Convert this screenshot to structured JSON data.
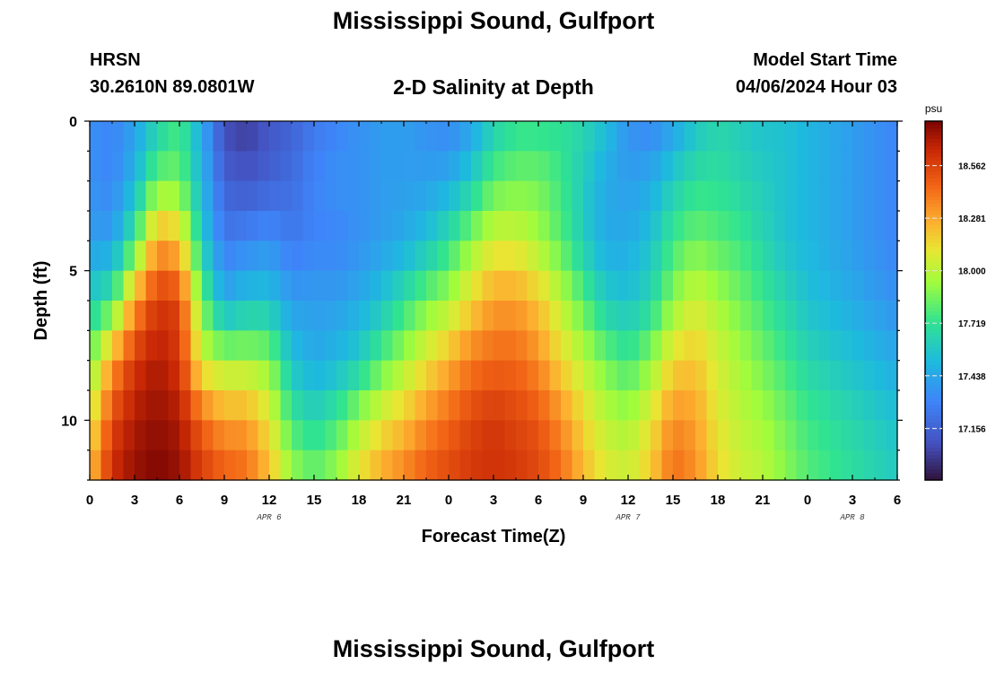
{
  "header": {
    "title": "Mississippi Sound, Gulfport",
    "station_id": "HRSN",
    "station_coords": "30.2610N  89.0801W",
    "plot_title": "2-D Salinity at Depth",
    "model_label": "Model Start Time",
    "model_time": "04/06/2024 Hour 03"
  },
  "footer": {
    "title": "Mississippi Sound, Gulfport"
  },
  "chart_data": {
    "type": "heatmap",
    "title": "2-D Salinity at Depth",
    "xlabel": "Forecast Time(Z)",
    "ylabel": "Depth (ft)",
    "x_ticks": [
      "0",
      "3",
      "6",
      "9",
      "12",
      "15",
      "18",
      "21",
      "0",
      "3",
      "6",
      "9",
      "12",
      "15",
      "18",
      "21",
      "0",
      "3",
      "6"
    ],
    "date_labels": [
      {
        "label": "APR 6",
        "hour": 12
      },
      {
        "label": "APR 7",
        "hour": 36
      },
      {
        "label": "APR 8",
        "hour": 51
      }
    ],
    "y_ticks": [
      "0",
      "5",
      "10"
    ],
    "xlim": [
      0,
      54
    ],
    "ylim": [
      0,
      12
    ],
    "colorbar": {
      "unit": "psu",
      "ticks": [
        "18.562",
        "18.281",
        "18.000",
        "17.719",
        "17.438",
        "17.156"
      ],
      "range": [
        16.88,
        18.8
      ]
    },
    "grid": false,
    "x_hours": [
      0,
      1.5,
      3,
      4.5,
      6,
      7.5,
      9,
      10.5,
      12,
      13.5,
      15,
      16.5,
      18,
      19.5,
      21,
      22.5,
      24,
      25.5,
      27,
      28.5,
      30,
      31.5,
      33,
      34.5,
      36,
      37.5,
      39,
      40.5,
      42,
      43.5,
      45,
      46.5,
      48,
      49.5,
      51,
      52.5,
      54
    ],
    "depths_ft": [
      0,
      2,
      4,
      6,
      8,
      10,
      12
    ],
    "salinity_psu": [
      [
        17.35,
        17.3,
        17.4,
        17.6,
        17.75,
        17.45,
        17.05,
        17.0,
        17.1,
        17.15,
        17.25,
        17.3,
        17.35,
        17.4,
        17.4,
        17.35,
        17.3,
        17.4,
        17.6,
        17.7,
        17.7,
        17.7,
        17.65,
        17.55,
        17.35,
        17.3,
        17.4,
        17.55,
        17.65,
        17.6,
        17.55,
        17.55,
        17.5,
        17.45,
        17.4,
        17.35,
        17.3
      ],
      [
        17.35,
        17.3,
        17.5,
        17.85,
        17.85,
        17.5,
        17.15,
        17.1,
        17.15,
        17.2,
        17.3,
        17.35,
        17.35,
        17.4,
        17.4,
        17.4,
        17.45,
        17.6,
        17.8,
        17.85,
        17.85,
        17.75,
        17.6,
        17.45,
        17.4,
        17.45,
        17.6,
        17.7,
        17.7,
        17.65,
        17.6,
        17.55,
        17.5,
        17.45,
        17.4,
        17.35,
        17.3
      ],
      [
        17.4,
        17.4,
        17.75,
        18.3,
        18.2,
        17.6,
        17.25,
        17.3,
        17.35,
        17.25,
        17.3,
        17.3,
        17.35,
        17.4,
        17.45,
        17.55,
        17.7,
        17.9,
        18.05,
        18.05,
        17.95,
        17.8,
        17.6,
        17.45,
        17.45,
        17.55,
        17.75,
        17.85,
        17.8,
        17.75,
        17.65,
        17.55,
        17.5,
        17.45,
        17.4,
        17.35,
        17.3
      ],
      [
        17.6,
        17.75,
        18.3,
        18.6,
        18.55,
        17.85,
        17.45,
        17.55,
        17.55,
        17.4,
        17.4,
        17.4,
        17.45,
        17.55,
        17.7,
        17.85,
        17.95,
        18.15,
        18.3,
        18.3,
        18.2,
        18.0,
        17.8,
        17.6,
        17.55,
        17.65,
        17.9,
        18.05,
        17.95,
        17.85,
        17.75,
        17.65,
        17.55,
        17.5,
        17.45,
        17.4,
        17.35
      ],
      [
        17.85,
        18.3,
        18.6,
        18.7,
        18.6,
        18.05,
        17.95,
        17.95,
        17.9,
        17.55,
        17.45,
        17.5,
        17.6,
        17.8,
        17.95,
        18.1,
        18.25,
        18.4,
        18.45,
        18.45,
        18.35,
        18.15,
        18.0,
        17.85,
        17.75,
        17.9,
        18.15,
        18.2,
        18.05,
        17.95,
        17.85,
        17.75,
        17.65,
        17.6,
        17.55,
        17.5,
        17.45
      ],
      [
        18.05,
        18.55,
        18.7,
        18.75,
        18.7,
        18.45,
        18.3,
        18.3,
        18.1,
        17.75,
        17.65,
        17.75,
        17.95,
        18.1,
        18.2,
        18.35,
        18.45,
        18.55,
        18.6,
        18.55,
        18.5,
        18.35,
        18.15,
        18.0,
        17.95,
        18.1,
        18.35,
        18.3,
        18.1,
        18.0,
        17.95,
        17.85,
        17.75,
        17.7,
        17.65,
        17.6,
        17.55
      ],
      [
        18.25,
        18.65,
        18.75,
        18.8,
        18.75,
        18.6,
        18.5,
        18.45,
        18.25,
        17.95,
        17.85,
        17.95,
        18.15,
        18.3,
        18.4,
        18.5,
        18.55,
        18.6,
        18.62,
        18.6,
        18.55,
        18.45,
        18.25,
        18.1,
        18.05,
        18.2,
        18.45,
        18.35,
        18.15,
        18.05,
        18.0,
        17.9,
        17.8,
        17.75,
        17.7,
        17.65,
        17.6
      ]
    ]
  }
}
